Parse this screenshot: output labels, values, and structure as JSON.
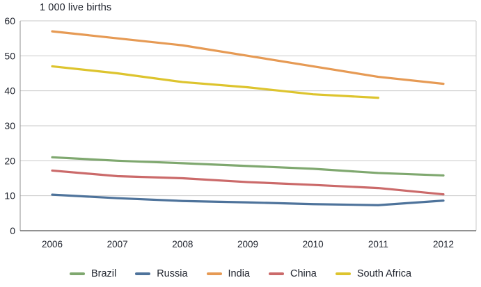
{
  "chart_data": {
    "type": "line",
    "title": "1 000 live births",
    "x": [
      2006,
      2007,
      2008,
      2009,
      2010,
      2011,
      2012
    ],
    "series": [
      {
        "name": "Brazil",
        "color": "#7FA86F",
        "values": [
          21.0,
          20.0,
          19.3,
          18.5,
          17.7,
          16.5,
          15.8
        ]
      },
      {
        "name": "Russia",
        "color": "#4E739B",
        "values": [
          10.3,
          9.3,
          8.5,
          8.1,
          7.6,
          7.3,
          8.6
        ]
      },
      {
        "name": "India",
        "color": "#E69A54",
        "values": [
          57.0,
          55.0,
          53.0,
          50.0,
          47.0,
          44.0,
          42.0
        ]
      },
      {
        "name": "China",
        "color": "#CB6A6A",
        "values": [
          17.2,
          15.6,
          15.0,
          13.9,
          13.1,
          12.2,
          10.4
        ]
      },
      {
        "name": "South Africa",
        "color": "#DDC42E",
        "values": [
          47.0,
          45.0,
          42.5,
          41.0,
          39.0,
          38.0,
          null
        ]
      }
    ],
    "ylim": [
      0,
      60
    ],
    "ytick_step": 10,
    "yticks": [
      0,
      10,
      20,
      30,
      40,
      50,
      60
    ],
    "grid": true,
    "legend_position": "bottom",
    "colors": {
      "grid": "#C9C9C9",
      "left_axis": "#8F8F8F",
      "bottom_axis": "#6E6E6E",
      "right_border": "#C9C9C9",
      "text": "#20242E",
      "background": "#FFFFFF"
    }
  }
}
